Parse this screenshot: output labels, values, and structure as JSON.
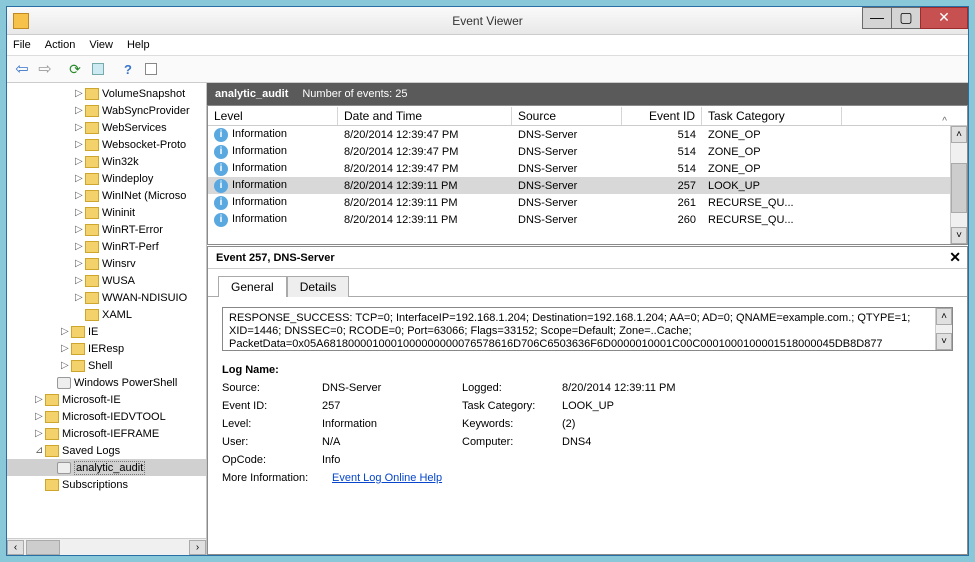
{
  "window": {
    "title": "Event Viewer"
  },
  "menu": {
    "file": "File",
    "action": "Action",
    "view": "View",
    "help": "Help"
  },
  "tree": [
    {
      "indent": "ind1",
      "twist": "▷",
      "icon": "folder",
      "label": "VolumeSnapshot"
    },
    {
      "indent": "ind1",
      "twist": "▷",
      "icon": "folder",
      "label": "WabSyncProvider"
    },
    {
      "indent": "ind1",
      "twist": "▷",
      "icon": "folder",
      "label": "WebServices"
    },
    {
      "indent": "ind1",
      "twist": "▷",
      "icon": "folder",
      "label": "Websocket-Proto"
    },
    {
      "indent": "ind1",
      "twist": "▷",
      "icon": "folder",
      "label": "Win32k"
    },
    {
      "indent": "ind1",
      "twist": "▷",
      "icon": "folder",
      "label": "Windeploy"
    },
    {
      "indent": "ind1",
      "twist": "▷",
      "icon": "folder",
      "label": "WinINet (Microso"
    },
    {
      "indent": "ind1",
      "twist": "▷",
      "icon": "folder",
      "label": "Wininit"
    },
    {
      "indent": "ind1",
      "twist": "▷",
      "icon": "folder",
      "label": "WinRT-Error"
    },
    {
      "indent": "ind1",
      "twist": "▷",
      "icon": "folder",
      "label": "WinRT-Perf"
    },
    {
      "indent": "ind1",
      "twist": "▷",
      "icon": "folder",
      "label": "Winsrv"
    },
    {
      "indent": "ind1",
      "twist": "▷",
      "icon": "folder",
      "label": "WUSA"
    },
    {
      "indent": "ind1",
      "twist": "▷",
      "icon": "folder",
      "label": "WWAN-NDISUIO"
    },
    {
      "indent": "ind1",
      "twist": "",
      "icon": "folder",
      "label": "XAML"
    },
    {
      "indent": "ind2",
      "twist": "▷",
      "icon": "folder",
      "label": "IE"
    },
    {
      "indent": "ind2",
      "twist": "▷",
      "icon": "folder",
      "label": "IEResp"
    },
    {
      "indent": "ind2",
      "twist": "▷",
      "icon": "folder",
      "label": "Shell"
    },
    {
      "indent": "ind3",
      "twist": "",
      "icon": "disk",
      "label": "Windows PowerShell"
    },
    {
      "indent": "ind4",
      "twist": "▷",
      "icon": "folder",
      "label": "Microsoft-IE"
    },
    {
      "indent": "ind4",
      "twist": "▷",
      "icon": "folder",
      "label": "Microsoft-IEDVTOOL"
    },
    {
      "indent": "ind4",
      "twist": "▷",
      "icon": "folder",
      "label": "Microsoft-IEFRAME"
    },
    {
      "indent": "ind4",
      "twist": "⊿",
      "icon": "folder",
      "label": "Saved Logs"
    },
    {
      "indent": "ind3",
      "twist": "",
      "icon": "disk",
      "label": "analytic_audit",
      "selected": true
    },
    {
      "indent": "ind4",
      "twist": "",
      "icon": "folder",
      "label": "Subscriptions"
    }
  ],
  "header": {
    "name": "analytic_audit",
    "count_label": "Number of events: 25"
  },
  "columns": {
    "level": "Level",
    "date": "Date and Time",
    "source": "Source",
    "eid": "Event ID",
    "cat": "Task Category"
  },
  "events": [
    {
      "level": "Information",
      "date": "8/20/2014 12:39:47 PM",
      "source": "DNS-Server",
      "eid": "514",
      "cat": "ZONE_OP"
    },
    {
      "level": "Information",
      "date": "8/20/2014 12:39:47 PM",
      "source": "DNS-Server",
      "eid": "514",
      "cat": "ZONE_OP"
    },
    {
      "level": "Information",
      "date": "8/20/2014 12:39:47 PM",
      "source": "DNS-Server",
      "eid": "514",
      "cat": "ZONE_OP"
    },
    {
      "level": "Information",
      "date": "8/20/2014 12:39:11 PM",
      "source": "DNS-Server",
      "eid": "257",
      "cat": "LOOK_UP",
      "selected": true
    },
    {
      "level": "Information",
      "date": "8/20/2014 12:39:11 PM",
      "source": "DNS-Server",
      "eid": "261",
      "cat": "RECURSE_QU..."
    },
    {
      "level": "Information",
      "date": "8/20/2014 12:39:11 PM",
      "source": "DNS-Server",
      "eid": "260",
      "cat": "RECURSE_QU..."
    }
  ],
  "detail": {
    "title": "Event 257, DNS-Server",
    "tabs": {
      "general": "General",
      "details": "Details"
    },
    "message": "RESPONSE_SUCCESS: TCP=0; InterfaceIP=192.168.1.204; Destination=192.168.1.204; AA=0; AD=0; QNAME=example.com.; QTYPE=1; XID=1446; DNSSEC=0; RCODE=0; Port=63066; Flags=33152; Scope=Default; Zone=..Cache; PacketData=0x05A6818000010001000000000076578616D706C6503636F6D0000010001C00C0001000100001518000045DB8D877",
    "logname_label": "Log Name:",
    "source_label": "Source:",
    "source": "DNS-Server",
    "logged_label": "Logged:",
    "logged": "8/20/2014 12:39:11 PM",
    "eventid_label": "Event ID:",
    "eventid": "257",
    "taskcat_label": "Task Category:",
    "taskcat": "LOOK_UP",
    "level_label": "Level:",
    "level": "Information",
    "keywords_label": "Keywords:",
    "keywords": "(2)",
    "user_label": "User:",
    "user": "N/A",
    "computer_label": "Computer:",
    "computer": "DNS4",
    "opcode_label": "OpCode:",
    "opcode": "Info",
    "moreinfo_label": "More Information:",
    "moreinfo_link": "Event Log Online Help"
  }
}
